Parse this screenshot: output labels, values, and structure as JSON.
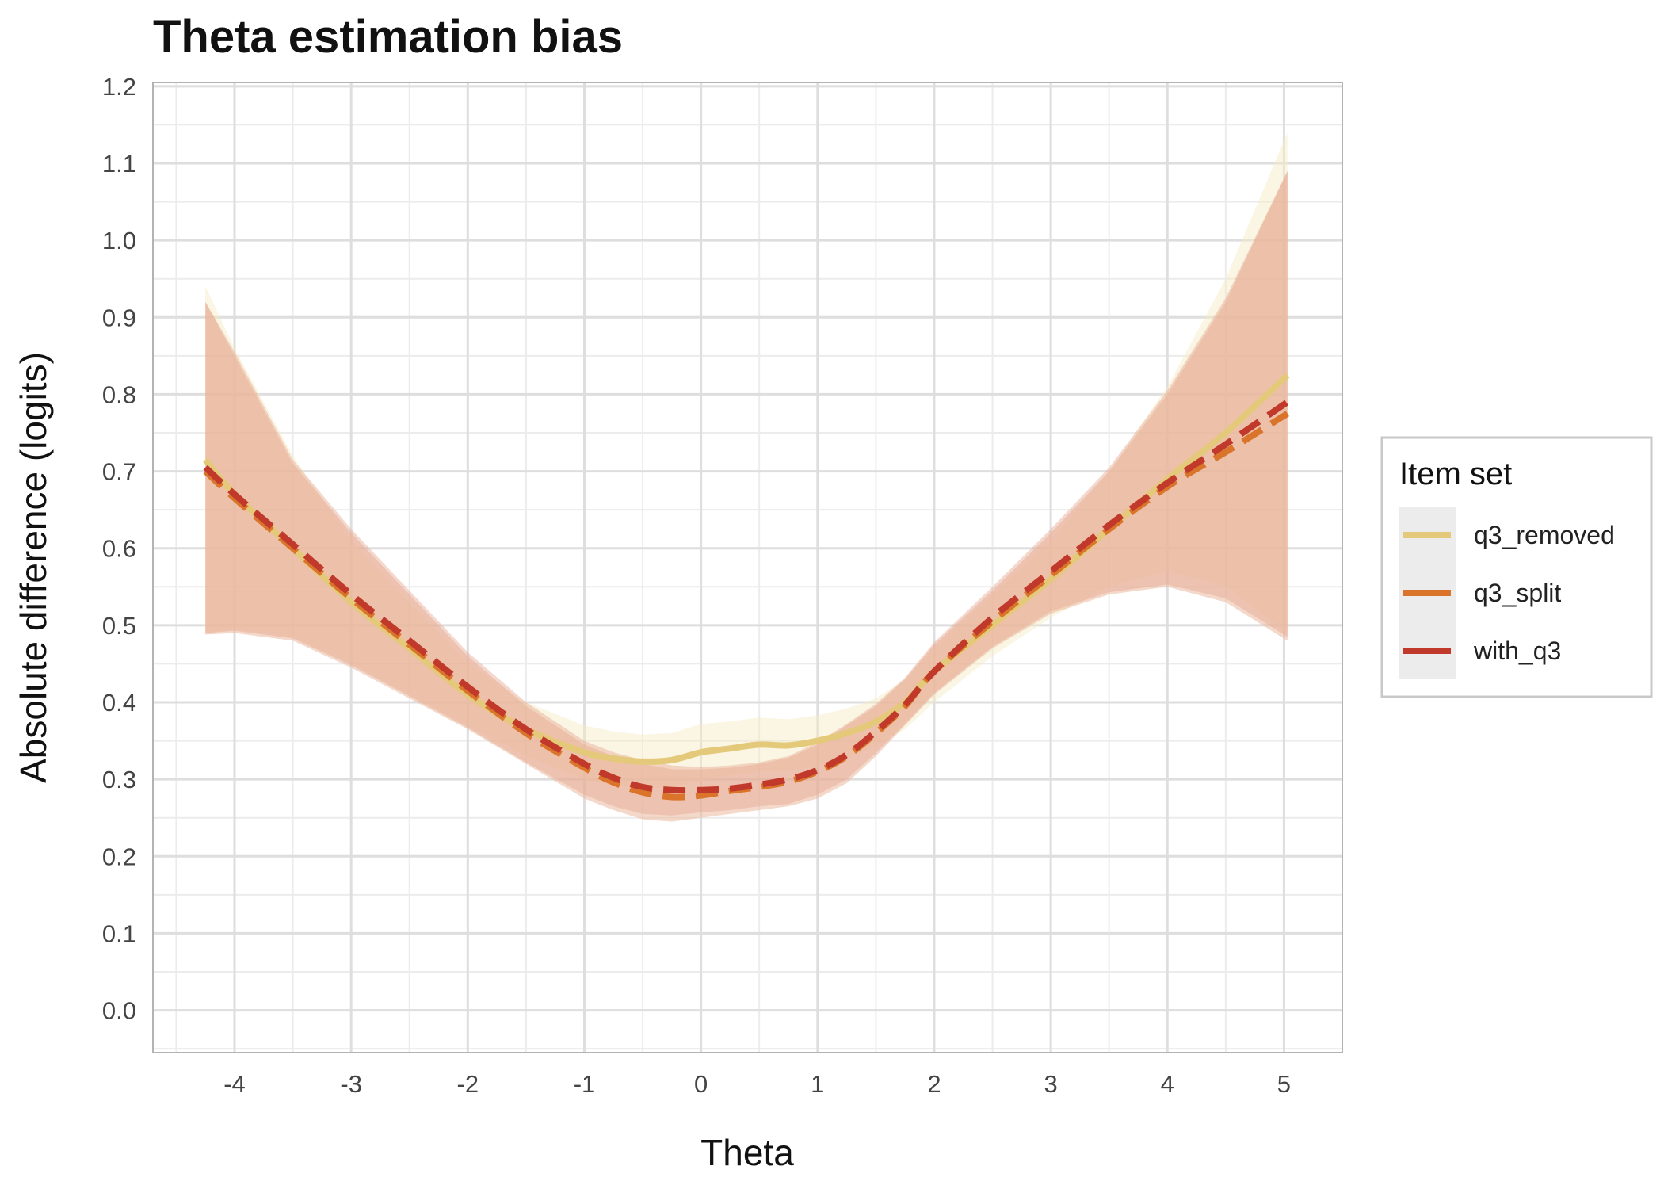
{
  "chart_data": {
    "type": "line",
    "title": "Theta estimation bias",
    "xlabel": "Theta",
    "ylabel": "Absolute difference (logits)",
    "xlim": [
      -4.7,
      5.5
    ],
    "ylim": [
      -0.055,
      1.205
    ],
    "x_ticks": [
      "-4",
      "-3",
      "-2",
      "-1",
      "0",
      "1",
      "2",
      "3",
      "4",
      "5"
    ],
    "y_ticks": [
      "0.0",
      "0.1",
      "0.2",
      "0.3",
      "0.4",
      "0.5",
      "0.6",
      "0.7",
      "0.8",
      "0.9",
      "1.0",
      "1.1",
      "1.2"
    ],
    "grid": true,
    "legend": {
      "title": "Item set",
      "position": "right"
    },
    "series": [
      {
        "name": "q3_removed",
        "color": "#e5c97a",
        "dash": "solid",
        "band_color": "#f5ecc0",
        "x": [
          -4.25,
          -4,
          -3.5,
          -3,
          -2.5,
          -2,
          -1.5,
          -1,
          -0.75,
          -0.5,
          -0.25,
          0,
          0.25,
          0.5,
          0.75,
          1,
          1.25,
          1.5,
          1.75,
          2,
          2.5,
          3,
          3.5,
          4,
          4.5,
          5.03
        ],
        "y": [
          0.715,
          0.67,
          0.6,
          0.53,
          0.47,
          0.41,
          0.365,
          0.335,
          0.327,
          0.323,
          0.325,
          0.335,
          0.34,
          0.345,
          0.344,
          0.35,
          0.36,
          0.375,
          0.4,
          0.44,
          0.5,
          0.56,
          0.625,
          0.69,
          0.75,
          0.825
        ],
        "lower": [
          0.49,
          0.495,
          0.485,
          0.45,
          0.41,
          0.37,
          0.33,
          0.3,
          0.292,
          0.288,
          0.29,
          0.298,
          0.305,
          0.31,
          0.31,
          0.318,
          0.328,
          0.342,
          0.365,
          0.4,
          0.46,
          0.51,
          0.55,
          0.57,
          0.55,
          0.49
        ],
        "upper": [
          0.94,
          0.86,
          0.72,
          0.61,
          0.53,
          0.45,
          0.4,
          0.37,
          0.362,
          0.358,
          0.36,
          0.372,
          0.375,
          0.38,
          0.378,
          0.383,
          0.392,
          0.405,
          0.43,
          0.47,
          0.54,
          0.61,
          0.7,
          0.81,
          0.95,
          1.14
        ]
      },
      {
        "name": "q3_split",
        "color": "#d9742a",
        "dash": "dashed",
        "band_color": "#ebb89c",
        "x": [
          -4.25,
          -4,
          -3.5,
          -3,
          -2.5,
          -2,
          -1.5,
          -1,
          -0.75,
          -0.5,
          -0.25,
          0,
          0.25,
          0.5,
          0.75,
          1,
          1.25,
          1.5,
          1.75,
          2,
          2.5,
          3,
          3.5,
          4,
          4.5,
          5.03
        ],
        "y": [
          0.7,
          0.665,
          0.6,
          0.535,
          0.475,
          0.415,
          0.36,
          0.315,
          0.296,
          0.283,
          0.277,
          0.279,
          0.285,
          0.29,
          0.297,
          0.31,
          0.33,
          0.36,
          0.395,
          0.44,
          0.505,
          0.565,
          0.625,
          0.68,
          0.725,
          0.775
        ],
        "lower": [
          0.488,
          0.49,
          0.48,
          0.445,
          0.405,
          0.365,
          0.32,
          0.275,
          0.26,
          0.248,
          0.245,
          0.25,
          0.255,
          0.26,
          0.265,
          0.275,
          0.295,
          0.33,
          0.37,
          0.41,
          0.47,
          0.515,
          0.54,
          0.55,
          0.53,
          0.48
        ],
        "upper": [
          0.92,
          0.85,
          0.71,
          0.62,
          0.54,
          0.46,
          0.395,
          0.345,
          0.33,
          0.32,
          0.313,
          0.313,
          0.315,
          0.32,
          0.328,
          0.345,
          0.37,
          0.395,
          0.43,
          0.475,
          0.545,
          0.62,
          0.7,
          0.8,
          0.92,
          1.09
        ]
      },
      {
        "name": "with_q3",
        "color": "#c0392b",
        "dash": "dashed",
        "band_color": "#e6a893",
        "x": [
          -4.25,
          -4,
          -3.5,
          -3,
          -2.5,
          -2,
          -1.5,
          -1,
          -0.75,
          -0.5,
          -0.25,
          0,
          0.25,
          0.5,
          0.75,
          1,
          1.25,
          1.5,
          1.75,
          2,
          2.5,
          3,
          3.5,
          4,
          4.5,
          5.03
        ],
        "y": [
          0.705,
          0.67,
          0.605,
          0.54,
          0.48,
          0.42,
          0.365,
          0.32,
          0.302,
          0.29,
          0.286,
          0.286,
          0.288,
          0.293,
          0.3,
          0.312,
          0.332,
          0.362,
          0.397,
          0.44,
          0.51,
          0.57,
          0.63,
          0.685,
          0.735,
          0.79
        ],
        "lower": [
          0.49,
          0.493,
          0.483,
          0.448,
          0.408,
          0.367,
          0.322,
          0.28,
          0.265,
          0.255,
          0.253,
          0.257,
          0.26,
          0.265,
          0.268,
          0.28,
          0.3,
          0.334,
          0.372,
          0.412,
          0.472,
          0.518,
          0.543,
          0.553,
          0.535,
          0.485
        ],
        "upper": [
          0.92,
          0.855,
          0.715,
          0.625,
          0.545,
          0.465,
          0.4,
          0.35,
          0.335,
          0.325,
          0.318,
          0.316,
          0.318,
          0.322,
          0.33,
          0.348,
          0.372,
          0.398,
          0.432,
          0.478,
          0.55,
          0.625,
          0.705,
          0.805,
          0.925,
          1.09
        ]
      }
    ]
  }
}
